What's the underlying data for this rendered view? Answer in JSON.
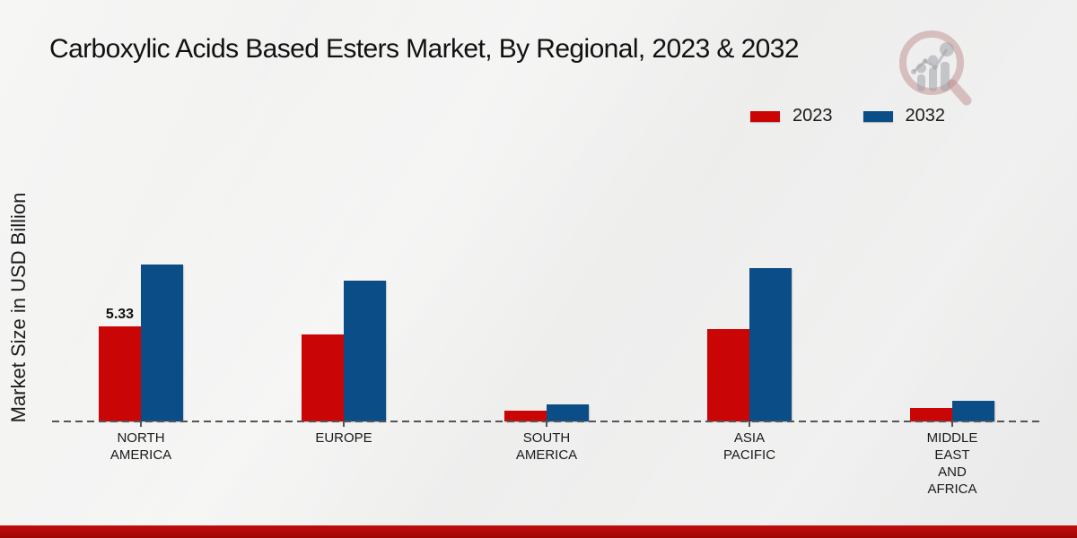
{
  "page": {
    "title": "Carboxylic Acids Based Esters Market, By Regional, 2023 & 2032",
    "ylabel": "Market Size in USD Billion"
  },
  "colors": {
    "series_2023": "#c90505",
    "series_2032": "#0b4d86",
    "axis_dash": "#555555",
    "footer_red": "#b30808",
    "text": "#1a1a1a"
  },
  "chart_data": {
    "type": "bar",
    "title": "Carboxylic Acids Based Esters Market, By Regional, 2023 & 2032",
    "xlabel": "",
    "ylabel": "Market Size in USD Billion",
    "units": "USD Billion",
    "categories": [
      "NORTH AMERICA",
      "EUROPE",
      "SOUTH AMERICA",
      "ASIA PACIFIC",
      "MIDDLE EAST AND AFRICA"
    ],
    "category_label_lines": [
      [
        "NORTH",
        "AMERICA"
      ],
      [
        "EUROPE"
      ],
      [
        "SOUTH",
        "AMERICA"
      ],
      [
        "ASIA",
        "PACIFIC"
      ],
      [
        "MIDDLE",
        "EAST",
        "AND",
        "AFRICA"
      ]
    ],
    "series": [
      {
        "name": "2023",
        "color": "#c90505",
        "values": [
          5.33,
          4.9,
          0.6,
          5.2,
          0.75
        ]
      },
      {
        "name": "2032",
        "color": "#0b4d86",
        "values": [
          8.8,
          7.9,
          0.95,
          8.6,
          1.15
        ]
      }
    ],
    "data_labels": [
      {
        "series": "2023",
        "category": "NORTH AMERICA",
        "text": "5.33"
      }
    ],
    "ylim": [
      0,
      10
    ],
    "grid": false,
    "legend_position": "top-right",
    "axis_style": "dashed zero line only, no y ticks"
  }
}
